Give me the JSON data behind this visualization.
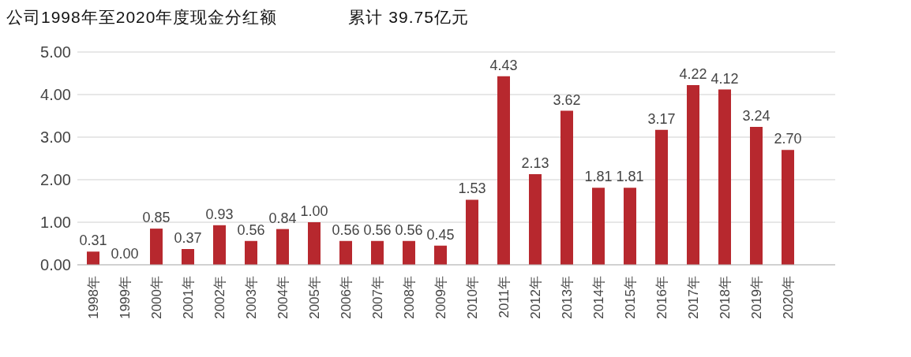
{
  "chart_data": {
    "type": "bar",
    "title": "公司1998年至2020年度现金分红额",
    "subtitle": "累计 39.75亿元",
    "categories": [
      "1998年",
      "1999年",
      "2000年",
      "2001年",
      "2002年",
      "2003年",
      "2004年",
      "2005年",
      "2006年",
      "2007年",
      "2008年",
      "2009年",
      "2010年",
      "2011年",
      "2012年",
      "2013年",
      "2014年",
      "2015年",
      "2016年",
      "2017年",
      "2018年",
      "2019年",
      "2020年",
      null
    ],
    "values": [
      0.31,
      0.0,
      0.85,
      0.37,
      0.93,
      0.56,
      0.84,
      1.0,
      0.56,
      0.56,
      0.56,
      0.45,
      1.53,
      4.43,
      2.13,
      3.62,
      1.81,
      1.81,
      3.17,
      4.22,
      4.12,
      3.24,
      2.7,
      null
    ],
    "value_labels": [
      "0.31",
      "0.00",
      "0.85",
      "0.37",
      "0.93",
      "0.56",
      "0.84",
      "1.00",
      "0.56",
      "0.56",
      "0.56",
      "0.45",
      "1.53",
      "4.43",
      "2.13",
      "3.62",
      "1.81",
      "1.81",
      "3.17",
      "4.22",
      "4.12",
      "3.24",
      "2.70",
      null
    ],
    "color": "#b7282e",
    "ylim": [
      0,
      5
    ],
    "yticks": [
      {
        "value": 0,
        "label": "0.00"
      },
      {
        "value": 1,
        "label": "1.00"
      },
      {
        "value": 2,
        "label": "2.00"
      },
      {
        "value": 3,
        "label": "3.00"
      },
      {
        "value": 4,
        "label": "4.00"
      },
      {
        "value": 5,
        "label": "5.00"
      }
    ],
    "grid": "y"
  }
}
